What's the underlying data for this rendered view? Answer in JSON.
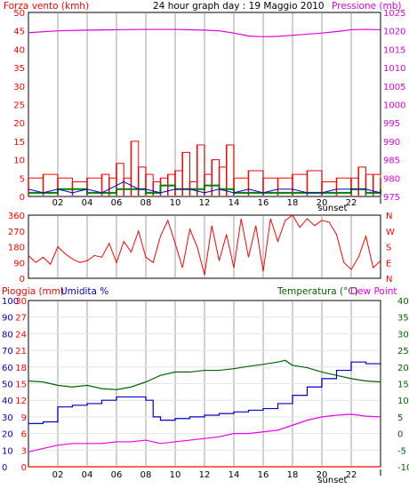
{
  "title": "24 hour graph day : 19 Maggio 2010",
  "colors": {
    "wind": "#ff0000",
    "gust": "#ff0000",
    "wind_avg": "#0000cc",
    "wind_green": "#008000",
    "pressure": "#dd00dd",
    "direction": "#ff0000",
    "rain": "#ff0000",
    "humidity": "#0000cc",
    "temperature": "#006600",
    "dew_point": "#ee00ee",
    "grid": "#d0d0d0"
  },
  "hour_labels": [
    "02",
    "04",
    "06",
    "08",
    "10",
    "12",
    "14",
    "16",
    "18",
    "20",
    "22"
  ],
  "sunset_label": "sunset",
  "sunset_hour": 20.6,
  "wind_panel": {
    "left_title": "Forza vento (kmh)",
    "right_title": "Pressione (mb)",
    "left_ticks": [
      "0",
      "5",
      "10",
      "15",
      "20",
      "25",
      "30",
      "35",
      "40",
      "45",
      "50"
    ],
    "right_ticks": [
      "975",
      "980",
      "985",
      "990",
      "995",
      "1000",
      "1005",
      "1010",
      "1015",
      "1020",
      "1025"
    ],
    "left_range": [
      0,
      50
    ],
    "right_range": [
      975,
      1025
    ]
  },
  "direction_panel": {
    "left_ticks": [
      "0",
      "90",
      "180",
      "270",
      "360"
    ],
    "right_labels": [
      "N",
      "E",
      "S",
      "W",
      "N"
    ],
    "range": [
      0,
      360
    ]
  },
  "env_panel": {
    "rain_title": "Pioggia (mm)",
    "humidity_title": "Umidita %",
    "temp_title": "Temperatura (°C)",
    "dew_title": "Dew Point",
    "rain_ticks": [
      "0",
      "3",
      "6",
      "9",
      "12",
      "15",
      "18",
      "21",
      "24",
      "27",
      "30"
    ],
    "humidity_ticks": [
      "0",
      "10",
      "20",
      "30",
      "40",
      "50",
      "60",
      "70",
      "80",
      "90",
      "100"
    ],
    "temp_ticks": [
      "-10",
      "-5",
      "0",
      "5",
      "10",
      "15",
      "20",
      "25",
      "30",
      "35",
      "40"
    ],
    "humidity_range": [
      0,
      100
    ],
    "temp_range": [
      -10,
      40
    ]
  },
  "chart_data": [
    {
      "type": "line",
      "title": "24 hour graph day : 19 Maggio 2010",
      "xlabel": "hour",
      "series": [
        {
          "name": "Forza vento (kmh)",
          "x": [
            0,
            1,
            2,
            3,
            4,
            5,
            5.5,
            6,
            6.5,
            7,
            7.5,
            8,
            8.5,
            9,
            9.5,
            10,
            10.5,
            11,
            11.5,
            12,
            12.5,
            13,
            13.5,
            14,
            15,
            16,
            17,
            18,
            19,
            20,
            21,
            22,
            22.5,
            23,
            23.5,
            24
          ],
          "y": [
            5,
            6,
            5,
            4,
            5,
            6,
            5,
            9,
            5,
            15,
            8,
            6,
            4,
            5,
            6,
            7,
            12,
            4,
            14,
            6,
            10,
            8,
            14,
            5,
            7,
            5,
            5,
            6,
            7,
            4,
            5,
            5,
            8,
            6,
            6,
            5
          ]
        },
        {
          "name": "Pressione (mb)",
          "x": [
            0,
            2,
            4,
            6,
            8,
            10,
            12,
            13,
            14,
            15,
            16,
            17,
            18,
            19,
            20,
            21,
            22,
            23,
            24
          ],
          "y": [
            1019.5,
            1020,
            1020.2,
            1020.3,
            1020.4,
            1020.4,
            1020.2,
            1020,
            1019.4,
            1018.6,
            1018.4,
            1018.5,
            1018.8,
            1019.1,
            1019.4,
            1019.8,
            1020.3,
            1020.4,
            1020.3
          ]
        },
        {
          "name": "",
          "x": [
            0,
            1,
            2,
            3,
            4,
            5,
            6,
            6.5,
            7,
            7.5,
            8,
            9,
            10,
            11,
            12,
            13,
            14,
            15,
            16,
            17,
            18,
            19,
            20,
            21,
            22,
            23,
            24
          ],
          "y": [
            2,
            1,
            2,
            1,
            2,
            1,
            3,
            4,
            3,
            2,
            2,
            1,
            2,
            2,
            1,
            2,
            1,
            2,
            1,
            2,
            2,
            1,
            1,
            2,
            2,
            2,
            1
          ]
        },
        {
          "name": "",
          "x": [
            0,
            2,
            4,
            6,
            7,
            8,
            9,
            10,
            11,
            12,
            13,
            14,
            16,
            18,
            20,
            22,
            23,
            24
          ],
          "y": [
            1,
            2,
            1,
            2,
            2,
            1,
            3,
            2,
            2,
            3,
            2,
            1,
            1,
            1,
            1,
            2,
            1,
            2
          ]
        }
      ],
      "ylim": [
        0,
        50
      ],
      "y2lim": [
        975,
        1025
      ]
    },
    {
      "type": "line",
      "title": "",
      "series": [
        {
          "name": "",
          "x": [
            0,
            0.5,
            1,
            1.5,
            2,
            2.5,
            3,
            3.5,
            4,
            4.5,
            5,
            5.5,
            6,
            6.5,
            7,
            7.5,
            8,
            8.5,
            9,
            9.5,
            10,
            10.5,
            11,
            11.5,
            12,
            12.5,
            13,
            13.5,
            14,
            14.5,
            15,
            15.5,
            16,
            16.5,
            17,
            17.5,
            18,
            18.5,
            19,
            19.5,
            20,
            20.5,
            21,
            21.5,
            22,
            22.5,
            23,
            23.5,
            24
          ],
          "y": [
            130,
            90,
            120,
            80,
            180,
            140,
            110,
            90,
            100,
            130,
            120,
            200,
            90,
            210,
            150,
            270,
            120,
            90,
            240,
            330,
            200,
            60,
            280,
            180,
            20,
            300,
            100,
            250,
            60,
            340,
            120,
            300,
            40,
            340,
            210,
            330,
            360,
            290,
            340,
            300,
            330,
            320,
            250,
            90,
            50,
            120,
            240,
            60,
            100
          ]
        }
      ],
      "ylim": [
        0,
        360
      ]
    },
    {
      "type": "line",
      "title": "",
      "series": [
        {
          "name": "Pioggia (mm)",
          "x": [
            0,
            24
          ],
          "y": [
            0,
            0
          ]
        },
        {
          "name": "Umidita %",
          "x": [
            0,
            1,
            2,
            3,
            4,
            5,
            6,
            7,
            8,
            8.5,
            9,
            10,
            11,
            12,
            13,
            14,
            15,
            16,
            17,
            18,
            19,
            20,
            21,
            22,
            23,
            24
          ],
          "y": [
            26,
            27,
            36,
            37,
            38,
            40,
            42,
            42,
            40,
            30,
            28,
            29,
            30,
            31,
            32,
            33,
            34,
            35,
            38,
            43,
            48,
            53,
            58,
            63,
            62,
            61
          ]
        },
        {
          "name": "Temperatura (°C)",
          "x": [
            0,
            1,
            2,
            3,
            4,
            5,
            6,
            7,
            8,
            9,
            10,
            11,
            12,
            13,
            14,
            15,
            16,
            17,
            17.5,
            18,
            19,
            20,
            21,
            22,
            23,
            24
          ],
          "y": [
            15.8,
            15.5,
            14.5,
            14,
            14.5,
            13.5,
            13.2,
            14,
            15.5,
            17.5,
            18.5,
            18.5,
            19,
            19,
            19.5,
            20.2,
            20.8,
            21.5,
            22,
            20.5,
            19.8,
            18.5,
            17.5,
            16.5,
            15.8,
            15.5
          ]
        },
        {
          "name": "Dew Point",
          "x": [
            0,
            1,
            2,
            3,
            4,
            5,
            6,
            7,
            8,
            9,
            10,
            11,
            12,
            13,
            14,
            15,
            16,
            17,
            18,
            19,
            20,
            21,
            22,
            23,
            24
          ],
          "y": [
            -5.5,
            -4.5,
            -3.5,
            -3,
            -3,
            -3,
            -2.5,
            -2.5,
            -2,
            -3,
            -2.5,
            -2,
            -1.5,
            -1,
            0,
            0,
            0.5,
            1,
            2.5,
            4,
            5,
            5.5,
            5.8,
            5.2,
            5
          ]
        }
      ],
      "ylim": [
        0,
        100
      ],
      "y2lim": [
        -10,
        40
      ]
    }
  ]
}
